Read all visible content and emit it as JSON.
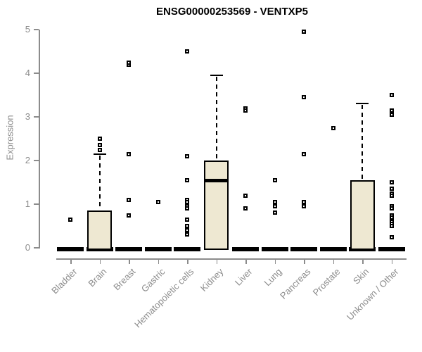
{
  "chart_data": {
    "type": "box",
    "title": "ENSG00000253569 - VENTXP5",
    "ylabel": "Expression",
    "xlabel": "",
    "ylim": [
      0,
      5
    ],
    "yticks": [
      0,
      1,
      2,
      3,
      4,
      5
    ],
    "grid": false,
    "legend": false,
    "colors": {
      "box_fill": "#EEE8D2",
      "box_line": "#000000",
      "axis": "#8C8C8C",
      "title": "#000000"
    },
    "categories": [
      "Bladder",
      "Brain",
      "Breast",
      "Gastric",
      "Hematopoietic cells",
      "Kidney",
      "Liver",
      "Lung",
      "Pancreas",
      "Prostate",
      "Skin",
      "Unknown / Other"
    ],
    "boxes": [
      {
        "category": "Bladder",
        "q1": 0,
        "median": 0,
        "q3": 0,
        "whisker_low": 0,
        "whisker_high": 0,
        "outliers": [
          0.65
        ]
      },
      {
        "category": "Brain",
        "q1": 0,
        "median": 0,
        "q3": 0.85,
        "whisker_low": 0,
        "whisker_high": 2.15,
        "outliers": [
          2.25,
          2.35,
          2.5
        ]
      },
      {
        "category": "Breast",
        "q1": 0,
        "median": 0,
        "q3": 0,
        "whisker_low": 0,
        "whisker_high": 0,
        "outliers": [
          4.2,
          4.25,
          2.15,
          1.1,
          0.75
        ]
      },
      {
        "category": "Gastric",
        "q1": 0,
        "median": 0,
        "q3": 0,
        "whisker_low": 0,
        "whisker_high": 0,
        "outliers": [
          1.05
        ]
      },
      {
        "category": "Hematopoietic cells",
        "q1": 0,
        "median": 0,
        "q3": 0,
        "whisker_low": 0,
        "whisker_high": 0,
        "outliers": [
          4.5,
          2.1,
          1.55,
          1.1,
          1.05,
          0.95,
          0.9,
          0.65,
          0.5,
          0.4,
          0.3
        ]
      },
      {
        "category": "Kidney",
        "q1": 0,
        "median": 1.55,
        "q3": 2.0,
        "whisker_low": 0,
        "whisker_high": 3.95,
        "outliers": []
      },
      {
        "category": "Liver",
        "q1": 0,
        "median": 0,
        "q3": 0,
        "whisker_low": 0,
        "whisker_high": 0,
        "outliers": [
          3.2,
          3.15,
          1.2,
          0.9
        ]
      },
      {
        "category": "Lung",
        "q1": 0,
        "median": 0,
        "q3": 0,
        "whisker_low": 0,
        "whisker_high": 0,
        "outliers": [
          1.55,
          1.05,
          0.95,
          0.8
        ]
      },
      {
        "category": "Pancreas",
        "q1": 0,
        "median": 0,
        "q3": 0,
        "whisker_low": 0,
        "whisker_high": 0,
        "outliers": [
          4.95,
          3.45,
          2.15,
          1.05,
          0.95
        ]
      },
      {
        "category": "Prostate",
        "q1": 0,
        "median": 0,
        "q3": 0,
        "whisker_low": 0,
        "whisker_high": 0,
        "outliers": [
          2.75
        ]
      },
      {
        "category": "Skin",
        "q1": 0,
        "median": 0,
        "q3": 1.55,
        "whisker_low": 0,
        "whisker_high": 3.3,
        "outliers": []
      },
      {
        "category": "Unknown / Other",
        "q1": 0,
        "median": 0,
        "q3": 0,
        "whisker_low": 0,
        "whisker_high": 0,
        "outliers": [
          3.5,
          3.15,
          3.05,
          1.5,
          1.35,
          1.25,
          1.2,
          0.95,
          0.9,
          0.75,
          0.7,
          0.6,
          0.55,
          0.5,
          0.25
        ]
      }
    ]
  }
}
